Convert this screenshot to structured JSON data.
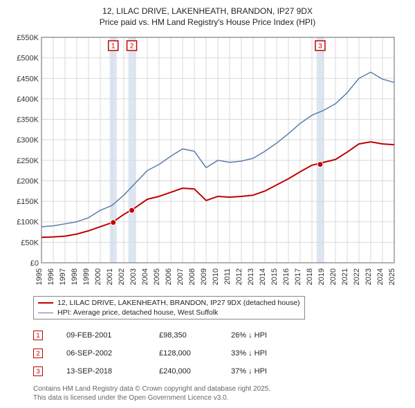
{
  "title_line1": "12, LILAC DRIVE, LAKENHEATH, BRANDON, IP27 9DX",
  "title_line2": "Price paid vs. HM Land Registry's House Price Index (HPI)",
  "title_fontsize": 12,
  "chart": {
    "type": "line",
    "background_color": "#ffffff",
    "grid_color": "#d9d9d9",
    "axis_color": "#666666",
    "label_color": "#333333",
    "label_fontsize": 11,
    "x": {
      "min": 1995,
      "max": 2025,
      "tick_step": 1,
      "ticks": [
        1995,
        1996,
        1997,
        1998,
        1999,
        2000,
        2001,
        2002,
        2003,
        2004,
        2005,
        2006,
        2007,
        2008,
        2009,
        2010,
        2011,
        2012,
        2013,
        2014,
        2015,
        2016,
        2017,
        2018,
        2019,
        2020,
        2021,
        2022,
        2023,
        2024,
        2025
      ]
    },
    "y": {
      "min": 0,
      "max": 550000,
      "tick_step": 50000,
      "prefix": "£",
      "suffix": "K",
      "ticks": [
        0,
        50000,
        100000,
        150000,
        200000,
        250000,
        300000,
        350000,
        400000,
        450000,
        500000,
        550000
      ]
    },
    "highlight_bands": [
      {
        "x": 2001.1,
        "width_years": 0.6,
        "color": "#dce6f2"
      },
      {
        "x": 2002.68,
        "width_years": 0.6,
        "color": "#dce6f2"
      },
      {
        "x": 2018.7,
        "width_years": 0.6,
        "color": "#dce6f2"
      }
    ],
    "series": [
      {
        "id": "price_paid",
        "label": "12, LILAC DRIVE, LAKENHEATH, BRANDON, IP27 9DX (detached house)",
        "color": "#c00000",
        "line_width": 2,
        "points": [
          [
            1995,
            62000
          ],
          [
            1996,
            63000
          ],
          [
            1997,
            65000
          ],
          [
            1998,
            70000
          ],
          [
            1999,
            78000
          ],
          [
            2000,
            88000
          ],
          [
            2001,
            98000
          ],
          [
            2002,
            118000
          ],
          [
            2003,
            135000
          ],
          [
            2004,
            155000
          ],
          [
            2005,
            162000
          ],
          [
            2006,
            172000
          ],
          [
            2007,
            182000
          ],
          [
            2008,
            180000
          ],
          [
            2009,
            152000
          ],
          [
            2010,
            162000
          ],
          [
            2011,
            160000
          ],
          [
            2012,
            162000
          ],
          [
            2013,
            165000
          ],
          [
            2014,
            175000
          ],
          [
            2015,
            190000
          ],
          [
            2016,
            205000
          ],
          [
            2017,
            222000
          ],
          [
            2018,
            238000
          ],
          [
            2019,
            245000
          ],
          [
            2020,
            252000
          ],
          [
            2021,
            270000
          ],
          [
            2022,
            290000
          ],
          [
            2023,
            295000
          ],
          [
            2024,
            290000
          ],
          [
            2025,
            288000
          ]
        ]
      },
      {
        "id": "hpi",
        "label": "HPI: Average price, detached house, West Suffolk",
        "color": "#5b7ca8",
        "line_width": 1.5,
        "points": [
          [
            1995,
            88000
          ],
          [
            1996,
            90000
          ],
          [
            1997,
            95000
          ],
          [
            1998,
            100000
          ],
          [
            1999,
            110000
          ],
          [
            2000,
            128000
          ],
          [
            2001,
            140000
          ],
          [
            2002,
            165000
          ],
          [
            2003,
            195000
          ],
          [
            2004,
            225000
          ],
          [
            2005,
            240000
          ],
          [
            2006,
            260000
          ],
          [
            2007,
            278000
          ],
          [
            2008,
            272000
          ],
          [
            2009,
            232000
          ],
          [
            2010,
            250000
          ],
          [
            2011,
            245000
          ],
          [
            2012,
            248000
          ],
          [
            2013,
            255000
          ],
          [
            2014,
            272000
          ],
          [
            2015,
            292000
          ],
          [
            2016,
            315000
          ],
          [
            2017,
            340000
          ],
          [
            2018,
            360000
          ],
          [
            2019,
            372000
          ],
          [
            2020,
            388000
          ],
          [
            2021,
            415000
          ],
          [
            2022,
            450000
          ],
          [
            2023,
            465000
          ],
          [
            2024,
            448000
          ],
          [
            2025,
            440000
          ]
        ]
      }
    ],
    "sale_markers": [
      {
        "n": 1,
        "x": 2001.1,
        "y": 98350,
        "color": "#c00000"
      },
      {
        "n": 2,
        "x": 2002.68,
        "y": 128000,
        "color": "#c00000"
      },
      {
        "n": 3,
        "x": 2018.7,
        "y": 240000,
        "color": "#c00000"
      }
    ],
    "sale_badges_top": [
      {
        "n": 1,
        "color": "#c00000"
      },
      {
        "n": 2,
        "color": "#c00000"
      },
      {
        "n": 3,
        "color": "#c00000"
      }
    ]
  },
  "legend": {
    "border_color": "#888888",
    "fontsize": 10.5,
    "items": [
      {
        "color": "#c00000",
        "width": 2,
        "label": "12, LILAC DRIVE, LAKENHEATH, BRANDON, IP27 9DX (detached house)"
      },
      {
        "color": "#5b7ca8",
        "width": 1.5,
        "label": "HPI: Average price, detached house, West Suffolk"
      }
    ]
  },
  "sales": [
    {
      "n": 1,
      "color": "#c00000",
      "date": "09-FEB-2001",
      "price": "£98,350",
      "hpi": "26% ↓ HPI"
    },
    {
      "n": 2,
      "color": "#c00000",
      "date": "06-SEP-2002",
      "price": "£128,000",
      "hpi": "33% ↓ HPI"
    },
    {
      "n": 3,
      "color": "#c00000",
      "date": "13-SEP-2018",
      "price": "£240,000",
      "hpi": "37% ↓ HPI"
    }
  ],
  "attribution": {
    "color": "#666666",
    "fontsize": 10,
    "line1": "Contains HM Land Registry data © Crown copyright and database right 2025.",
    "line2": "This data is licensed under the Open Government Licence v3.0."
  }
}
